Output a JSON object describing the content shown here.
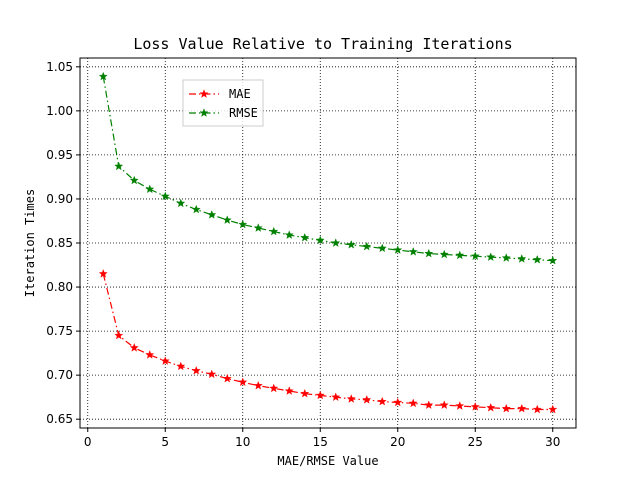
{
  "chart_data": {
    "type": "line",
    "title": "Loss Value Relative to Training Iterations",
    "xlabel": "MAE/RMSE Value",
    "ylabel": "Iteration Times",
    "xlim": [
      -0.5,
      31.5
    ],
    "ylim": [
      0.64,
      1.06
    ],
    "xticks": [
      0,
      5,
      10,
      15,
      20,
      25,
      30
    ],
    "yticks": [
      0.65,
      0.7,
      0.75,
      0.8,
      0.85,
      0.9,
      0.95,
      1.0,
      1.05
    ],
    "grid": true,
    "legend_position": "upper-left",
    "x": [
      1,
      2,
      3,
      4,
      5,
      6,
      7,
      8,
      9,
      10,
      11,
      12,
      13,
      14,
      15,
      16,
      17,
      18,
      19,
      20,
      21,
      22,
      23,
      24,
      25,
      26,
      27,
      28,
      29,
      30
    ],
    "series": [
      {
        "name": "MAE",
        "color": "#ff0000",
        "marker": "star",
        "line_style": "dash-dot",
        "values": [
          0.815,
          0.745,
          0.731,
          0.723,
          0.716,
          0.71,
          0.705,
          0.701,
          0.696,
          0.692,
          0.688,
          0.685,
          0.682,
          0.679,
          0.677,
          0.675,
          0.673,
          0.672,
          0.67,
          0.669,
          0.668,
          0.666,
          0.666,
          0.665,
          0.664,
          0.663,
          0.662,
          0.662,
          0.661,
          0.661
        ]
      },
      {
        "name": "RMSE",
        "color": "#008000",
        "marker": "star",
        "line_style": "dash-dot",
        "values": [
          1.039,
          0.937,
          0.921,
          0.911,
          0.903,
          0.895,
          0.888,
          0.882,
          0.876,
          0.871,
          0.867,
          0.863,
          0.859,
          0.856,
          0.853,
          0.85,
          0.848,
          0.846,
          0.844,
          0.842,
          0.84,
          0.838,
          0.837,
          0.836,
          0.835,
          0.834,
          0.833,
          0.832,
          0.831,
          0.83
        ]
      }
    ]
  }
}
